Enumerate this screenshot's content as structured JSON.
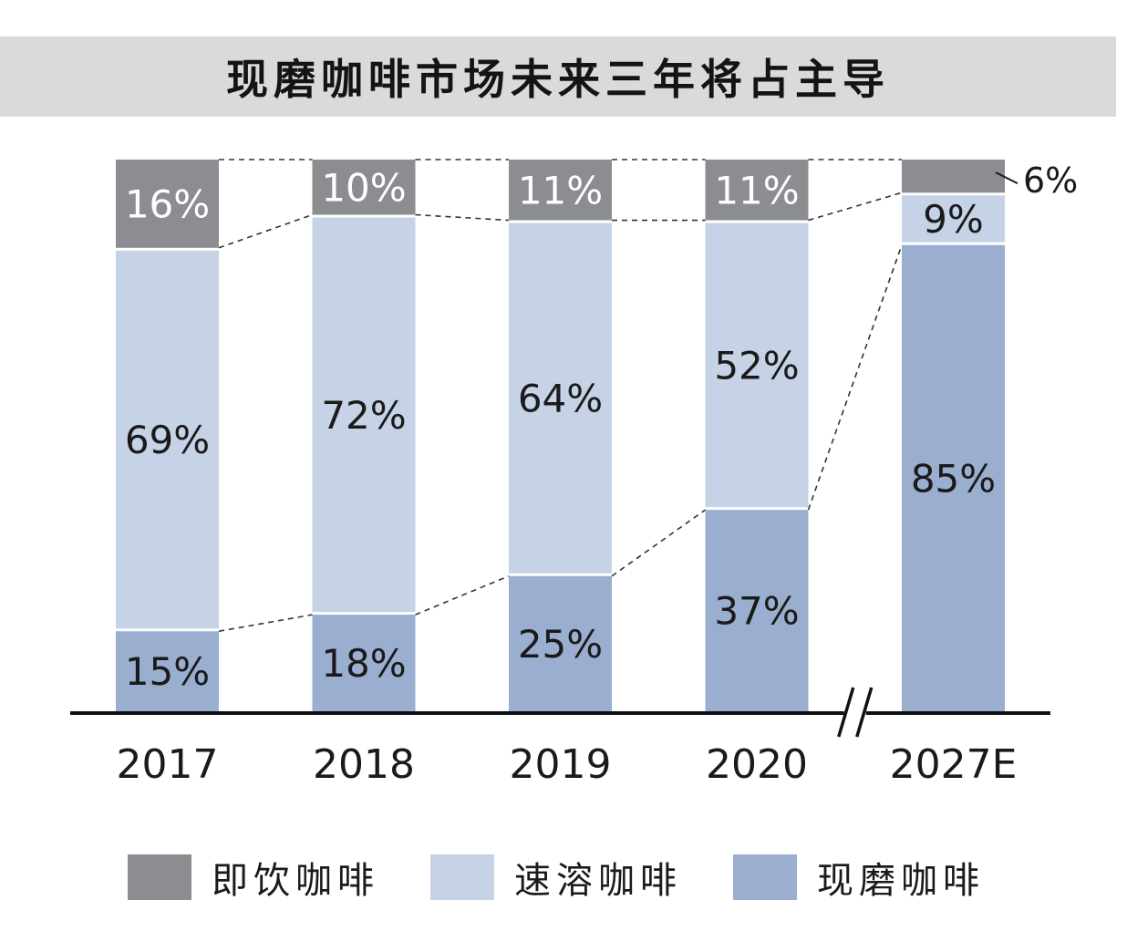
{
  "chart_data": {
    "type": "bar",
    "stacked": true,
    "percent_stacked": true,
    "title": "现磨咖啡市场未来三年将占主导",
    "categories": [
      "2017",
      "2018",
      "2019",
      "2020",
      "2027E"
    ],
    "series": [
      {
        "name": "现磨咖啡",
        "color": "#9aaed0",
        "values": [
          15,
          18,
          25,
          37,
          85
        ],
        "labels": [
          "15%",
          "18%",
          "25%",
          "37%",
          "85%"
        ]
      },
      {
        "name": "速溶咖啡",
        "color": "#c6d2e6",
        "values": [
          69,
          72,
          64,
          52,
          9
        ],
        "labels": [
          "69%",
          "72%",
          "64%",
          "52%",
          "9%"
        ]
      },
      {
        "name": "即饮咖啡",
        "color": "#8c8d91",
        "values": [
          16,
          10,
          11,
          11,
          6
        ],
        "labels": [
          "16%",
          "10%",
          "11%",
          "11%",
          "6%"
        ]
      }
    ],
    "ylim": [
      0,
      100
    ],
    "axis_break_before": "2027E",
    "legend_position": "bottom",
    "grid": false
  }
}
